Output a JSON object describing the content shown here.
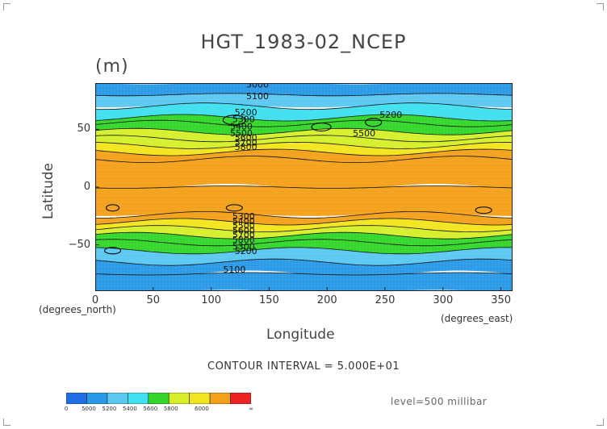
{
  "chart_data": {
    "type": "heatmap",
    "title": "HGT_1983-02_NCEP",
    "units": "(m)",
    "xlabel": "Longitude",
    "ylabel": "Latitude",
    "x_units": "(degrees_east)",
    "y_units": "(degrees_north)",
    "x_ticks": [
      "0",
      "50",
      "100",
      "150",
      "200",
      "250",
      "300",
      "350"
    ],
    "y_ticks": [
      "50",
      "0",
      "−50"
    ],
    "xlim": [
      0,
      360
    ],
    "ylim": [
      -90,
      90
    ],
    "contour_interval": "CONTOUR INTERVAL = 5.000E+01",
    "level": "level=500 millibar",
    "grid": false,
    "colorbar": {
      "levels": [
        "0",
        "5000",
        "5200",
        "5400",
        "5600",
        "5800",
        "6000",
        "∞"
      ],
      "colors": [
        "#1e6ee6",
        "#2a9ae8",
        "#5bc8f2",
        "#3fe0f0",
        "#33d72a",
        "#d6ef2a",
        "#f3e51d",
        "#f4a11a",
        "#ee2222"
      ]
    },
    "contour_labels": [
      "5000",
      "5100",
      "5200",
      "5300",
      "5400",
      "5500",
      "5600",
      "5700",
      "5800",
      "5200",
      "5500",
      "5300",
      "5400",
      "5500",
      "5600",
      "5700",
      "5800",
      "5300",
      "5200",
      "5100"
    ],
    "zonal_bands": [
      {
        "lat": 90,
        "value": 5000
      },
      {
        "lat": 80,
        "value": 5100
      },
      {
        "lat": 70,
        "value": 5300
      },
      {
        "lat": 60,
        "value": 5350
      },
      {
        "lat": 55,
        "value": 5450
      },
      {
        "lat": 48,
        "value": 5550
      },
      {
        "lat": 42,
        "value": 5650
      },
      {
        "lat": 36,
        "value": 5720
      },
      {
        "lat": 30,
        "value": 5780
      },
      {
        "lat": 24,
        "value": 5830
      },
      {
        "lat": 0,
        "value": 5870
      },
      {
        "lat": -24,
        "value": 5850
      },
      {
        "lat": -30,
        "value": 5790
      },
      {
        "lat": -36,
        "value": 5700
      },
      {
        "lat": -42,
        "value": 5600
      },
      {
        "lat": -48,
        "value": 5480
      },
      {
        "lat": -55,
        "value": 5350
      },
      {
        "lat": -65,
        "value": 5200
      },
      {
        "lat": -75,
        "value": 5100
      },
      {
        "lat": -90,
        "value": 5080
      }
    ]
  }
}
